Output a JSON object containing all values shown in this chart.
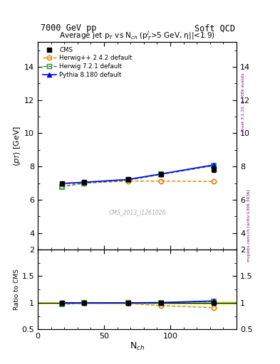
{
  "title_top_left": "7000 GeV pp",
  "title_top_right": "Soft QCD",
  "plot_title": "Average jet p$_{T}$ vs N$_{ch}$ (p$^{j}_{T}$>5 GeV, η||<1.9)",
  "watermark": "CMS_2013_I1261026",
  "right_label": "mcplots.cern.ch [arXiv:1306.3436]",
  "right_label2": "Rivet 3.1.10, ≥ 400k events",
  "xlabel": "N$_{ch}$",
  "ylabel_main": "$\\langle p_T \\rangle$ [GeV]",
  "ylabel_ratio": "Ratio to CMS",
  "cms_x": [
    18,
    35,
    68,
    93,
    133
  ],
  "cms_y": [
    6.97,
    7.05,
    7.22,
    7.52,
    7.82
  ],
  "cms_yerr": [
    0.07,
    0.06,
    0.08,
    0.1,
    0.14
  ],
  "herwig242_x": [
    18,
    35,
    68,
    93,
    133
  ],
  "herwig242_y": [
    6.95,
    7.0,
    7.12,
    7.12,
    7.1
  ],
  "herwig721_x": [
    18,
    35,
    68,
    93,
    133
  ],
  "herwig721_y": [
    6.78,
    7.0,
    7.18,
    7.52,
    8.05
  ],
  "pythia_x": [
    18,
    35,
    68,
    93,
    133
  ],
  "pythia_y": [
    6.98,
    7.05,
    7.22,
    7.55,
    8.1
  ],
  "ylim_main": [
    3.0,
    15.5
  ],
  "ylim_ratio": [
    0.5,
    2.0
  ],
  "xlim": [
    0,
    150
  ],
  "yticks_main": [
    4,
    6,
    8,
    10,
    12,
    14
  ],
  "yticks_ratio": [
    0.5,
    1.0,
    1.5,
    2.0
  ],
  "xticks": [
    0,
    50,
    100
  ],
  "cms_color": "#000000",
  "herwig242_color": "#E08000",
  "herwig721_color": "#228B22",
  "pythia_color": "#0000FF",
  "band_color_yellow": "#FFFF00",
  "band_color_green": "#90EE90"
}
